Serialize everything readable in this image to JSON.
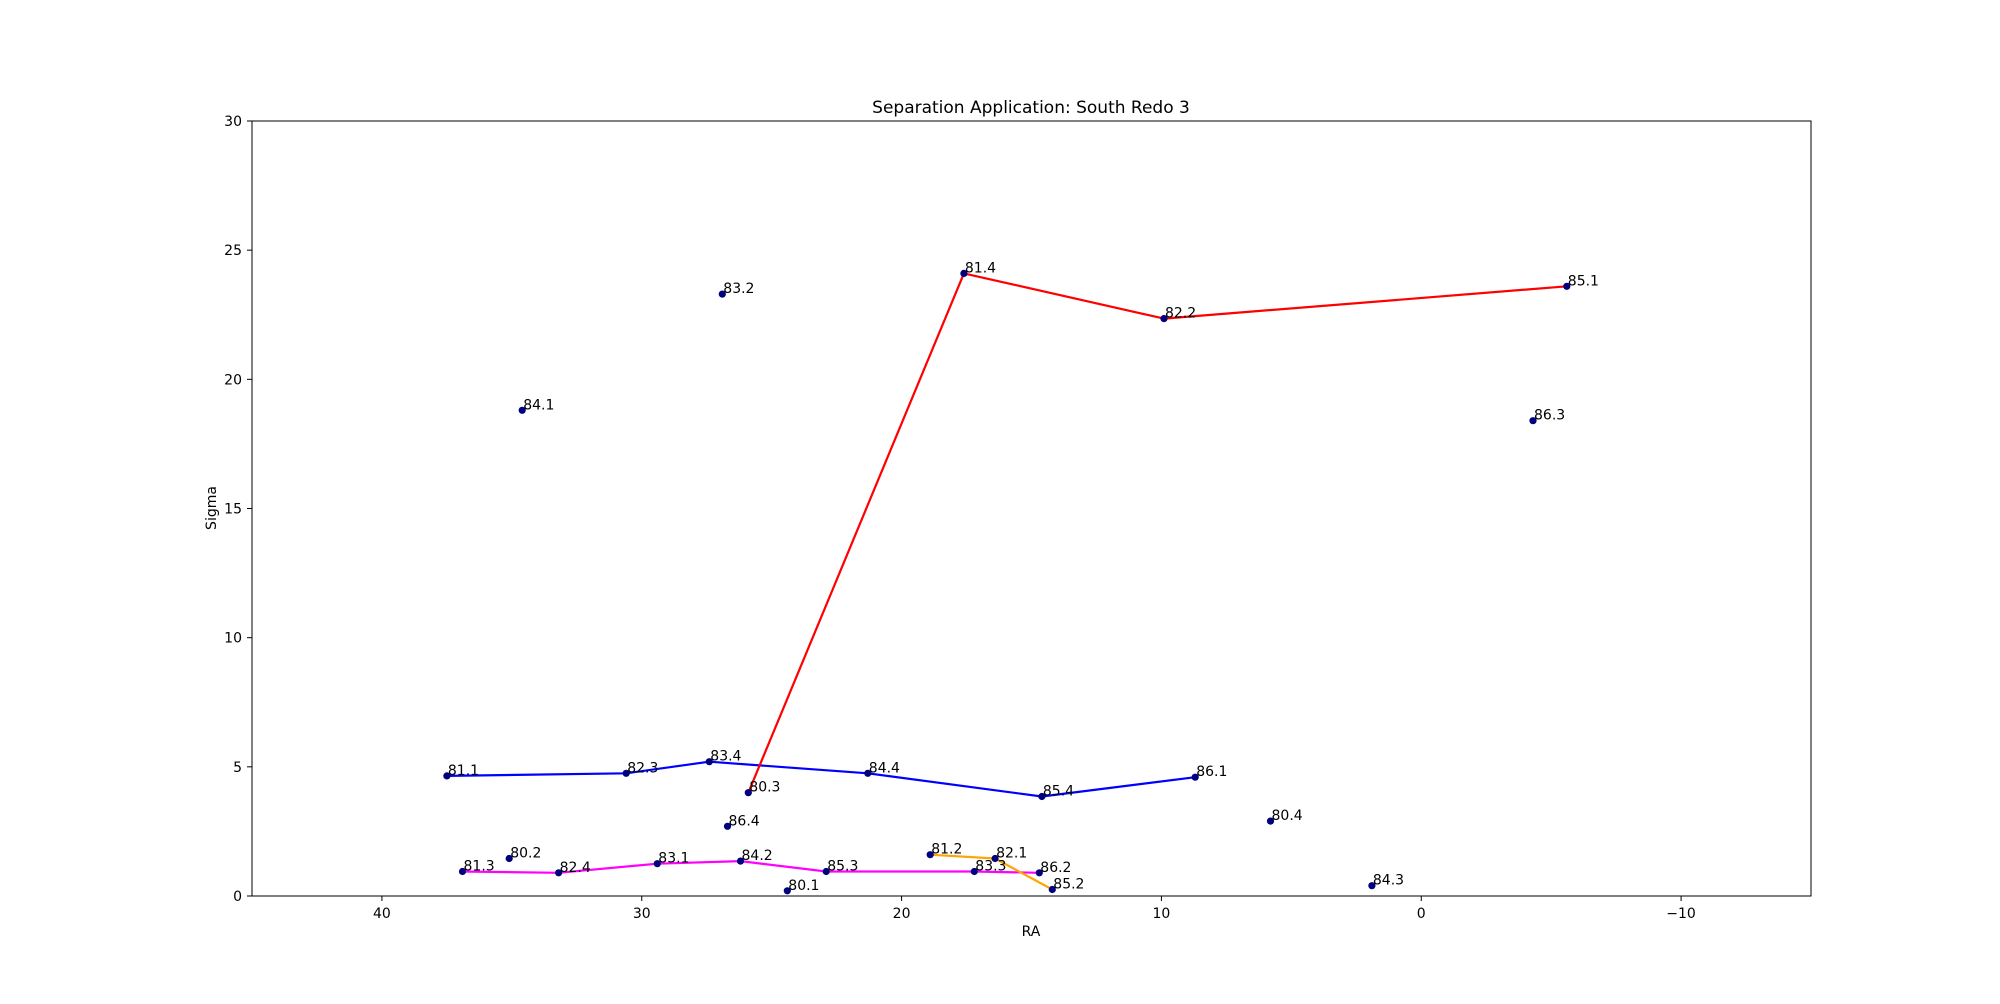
{
  "chart_data": {
    "type": "scatter",
    "title": "Separation Application: South Redo 3",
    "xlabel": "RA",
    "ylabel": "Sigma",
    "xlim": [
      45,
      -15
    ],
    "ylim": [
      0,
      30
    ],
    "x_ticks": [
      40,
      30,
      20,
      10,
      0,
      -10
    ],
    "x_tick_labels": [
      "40",
      "30",
      "20",
      "10",
      "0",
      "−10"
    ],
    "y_ticks": [
      0,
      5,
      10,
      15,
      20,
      25,
      30
    ],
    "y_tick_labels": [
      "0",
      "5",
      "10",
      "15",
      "20",
      "25",
      "30"
    ],
    "grid": false,
    "marker_color": "#00007f",
    "points": [
      {
        "label": "81.1",
        "x": 37.5,
        "y": 4.65
      },
      {
        "label": "82.3",
        "x": 30.6,
        "y": 4.75
      },
      {
        "label": "83.4",
        "x": 27.4,
        "y": 5.2
      },
      {
        "label": "84.4",
        "x": 21.3,
        "y": 4.75
      },
      {
        "label": "85.4",
        "x": 14.6,
        "y": 3.85
      },
      {
        "label": "86.1",
        "x": 8.7,
        "y": 4.6
      },
      {
        "label": "80.3",
        "x": 25.9,
        "y": 4.0
      },
      {
        "label": "81.4",
        "x": 17.6,
        "y": 24.1
      },
      {
        "label": "82.2",
        "x": 9.9,
        "y": 22.35
      },
      {
        "label": "85.1",
        "x": -5.6,
        "y": 23.6
      },
      {
        "label": "83.2",
        "x": 26.9,
        "y": 23.3
      },
      {
        "label": "84.1",
        "x": 34.6,
        "y": 18.8
      },
      {
        "label": "86.3",
        "x": -4.3,
        "y": 18.4
      },
      {
        "label": "80.4",
        "x": 5.8,
        "y": 2.9
      },
      {
        "label": "86.4",
        "x": 26.7,
        "y": 2.7
      },
      {
        "label": "81.3",
        "x": 36.9,
        "y": 0.95
      },
      {
        "label": "80.2",
        "x": 35.1,
        "y": 1.45
      },
      {
        "label": "82.4",
        "x": 33.2,
        "y": 0.9
      },
      {
        "label": "83.1",
        "x": 29.4,
        "y": 1.25
      },
      {
        "label": "84.2",
        "x": 26.2,
        "y": 1.35
      },
      {
        "label": "80.1",
        "x": 24.4,
        "y": 0.2
      },
      {
        "label": "85.3",
        "x": 22.9,
        "y": 0.95
      },
      {
        "label": "81.2",
        "x": 18.9,
        "y": 1.6
      },
      {
        "label": "82.1",
        "x": 16.4,
        "y": 1.45
      },
      {
        "label": "83.3",
        "x": 17.2,
        "y": 0.95
      },
      {
        "label": "86.2",
        "x": 14.7,
        "y": 0.9
      },
      {
        "label": "85.2",
        "x": 14.2,
        "y": 0.25
      },
      {
        "label": "84.3",
        "x": 1.9,
        "y": 0.4
      }
    ],
    "lines": [
      {
        "color": "#0000ff",
        "x": [
          37.5,
          30.6,
          27.4,
          21.3,
          14.6,
          8.7
        ],
        "y": [
          4.65,
          4.75,
          5.2,
          4.75,
          3.85,
          4.6
        ]
      },
      {
        "color": "#ff0000",
        "x": [
          25.9,
          17.6,
          9.9,
          -5.6
        ],
        "y": [
          4.0,
          24.1,
          22.35,
          23.6
        ]
      },
      {
        "color": "#ff00ff",
        "x": [
          36.9,
          33.2,
          29.4,
          26.2,
          22.9,
          17.2,
          14.7
        ],
        "y": [
          0.95,
          0.9,
          1.25,
          1.35,
          0.95,
          0.95,
          0.9
        ]
      },
      {
        "color": "#ffa500",
        "x": [
          18.9,
          16.4,
          14.2
        ],
        "y": [
          1.6,
          1.45,
          0.25
        ]
      }
    ]
  }
}
